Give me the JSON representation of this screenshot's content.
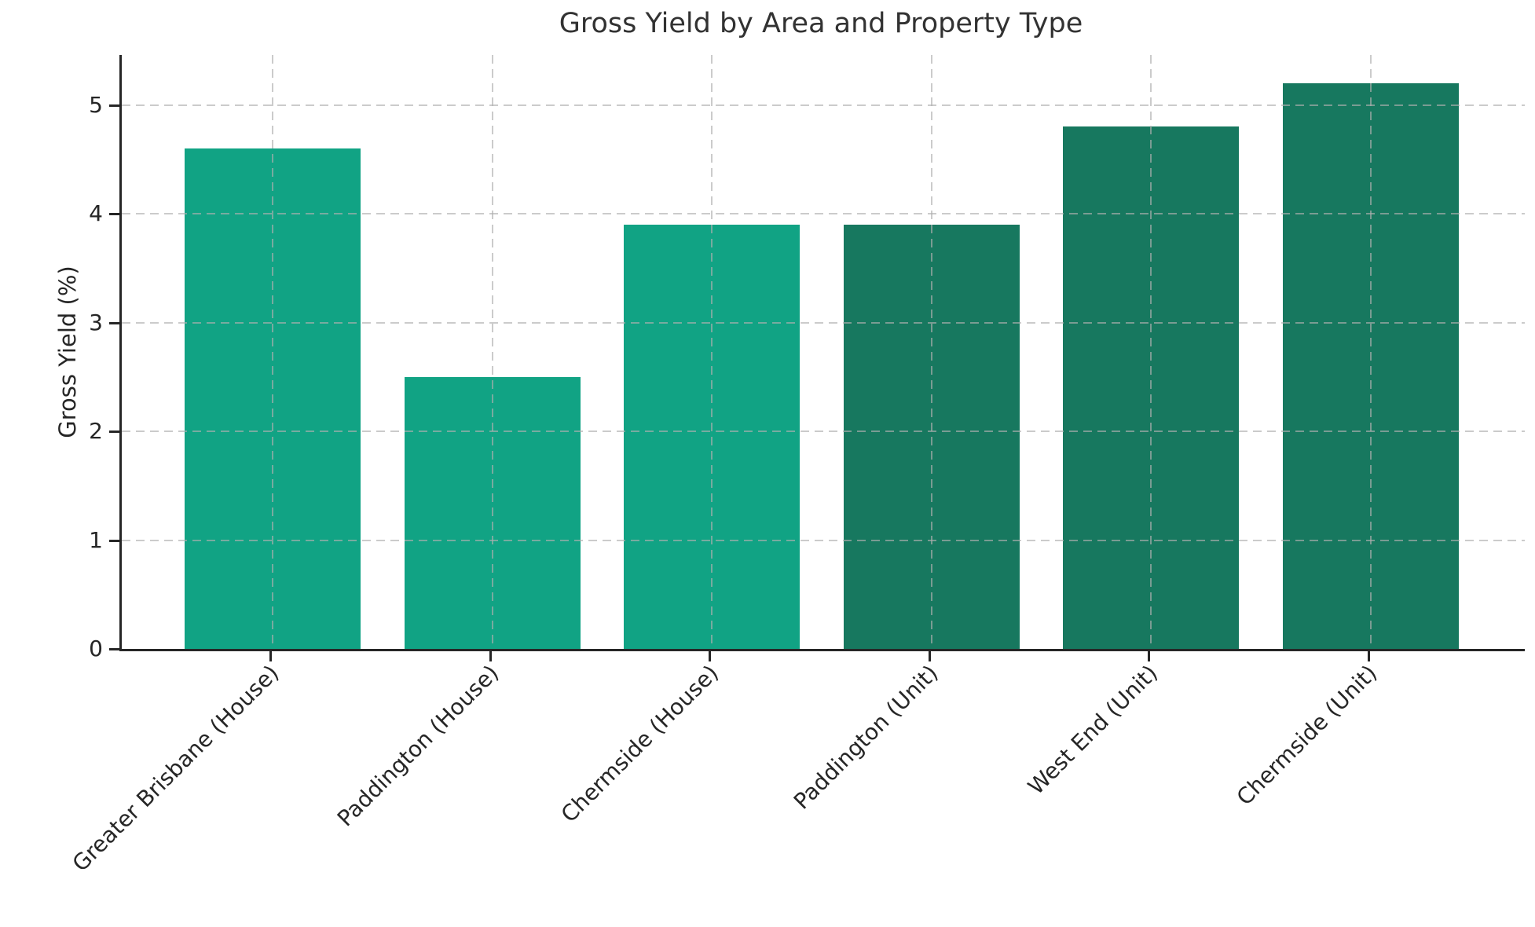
{
  "figure": {
    "title": "Gross Yield by Area and Property Type",
    "y_axis_label": "Gross Yield (%)"
  },
  "chart_data": {
    "type": "bar",
    "title": "Gross Yield by Area and Property Type",
    "xlabel": "",
    "ylabel": "Gross Yield (%)",
    "categories": [
      "Greater Brisbane (House)",
      "Paddington (House)",
      "Chermside (House)",
      "Paddington (Unit)",
      "West End (Unit)",
      "Chermside (Unit)"
    ],
    "values": [
      4.6,
      2.5,
      3.9,
      3.9,
      4.8,
      5.2
    ],
    "bar_colors": [
      "#11a384",
      "#11a384",
      "#11a384",
      "#17785f",
      "#17785f",
      "#17785f"
    ],
    "color_legend": {
      "house_bars": "#11a384",
      "unit_bars": "#17785f"
    },
    "yticks": [
      0,
      1,
      2,
      3,
      4,
      5
    ],
    "ylim": [
      0,
      5.46
    ],
    "x_tick_rotation_deg": 45,
    "grid": true,
    "grid_linestyle": "dashed",
    "grid_color": "#c9c9c9",
    "legend_position": "none",
    "spine_color": "#262626"
  }
}
